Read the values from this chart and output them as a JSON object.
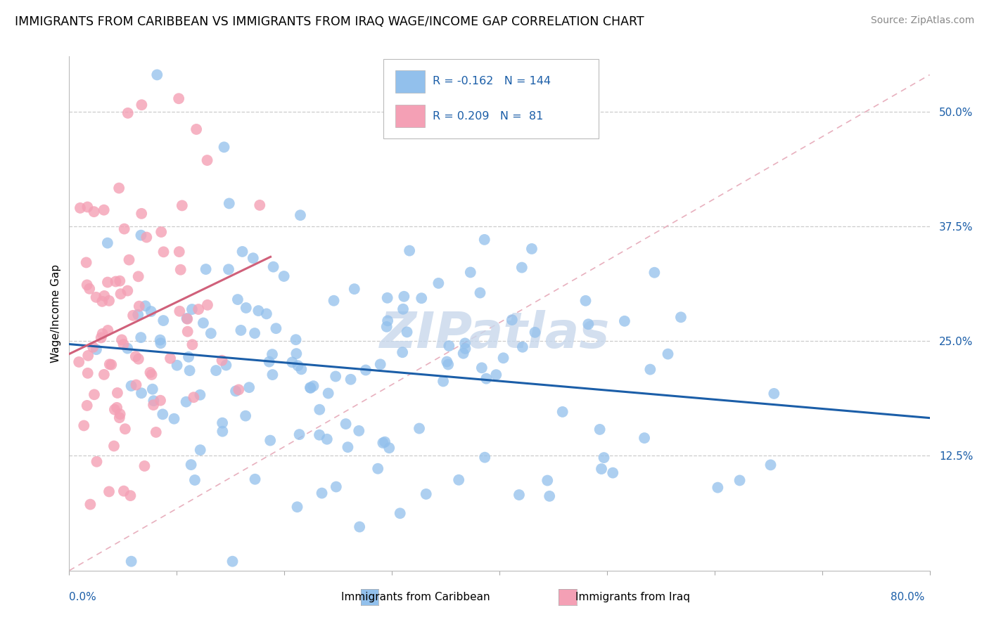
{
  "title": "IMMIGRANTS FROM CARIBBEAN VS IMMIGRANTS FROM IRAQ WAGE/INCOME GAP CORRELATION CHART",
  "source": "Source: ZipAtlas.com",
  "ylabel": "Wage/Income Gap",
  "y_tick_labels": [
    "12.5%",
    "25.0%",
    "37.5%",
    "50.0%"
  ],
  "y_tick_values": [
    0.125,
    0.25,
    0.375,
    0.5
  ],
  "legend_r1": "-0.162",
  "legend_n1": "144",
  "legend_r2": "0.209",
  "legend_n2": " 81",
  "caribbean_color": "#92C0EC",
  "iraq_color": "#F4A0B5",
  "caribbean_line_color": "#1B5EA8",
  "iraq_line_color": "#D0607A",
  "background_line_color": "#E8B0BE",
  "title_fontsize": 12.5,
  "source_fontsize": 10,
  "label_fontsize": 11,
  "tick_fontsize": 11,
  "xlim": [
    0.0,
    0.8
  ],
  "ylim": [
    0.0,
    0.56
  ],
  "watermark": "ZIPatlas",
  "watermark_color": "#C8D8EC",
  "bottom_label_0": "0.0%",
  "bottom_label_carib": "Immigrants from Caribbean",
  "bottom_label_iraq": "Immigrants from Iraq",
  "bottom_label_80": "80.0%"
}
